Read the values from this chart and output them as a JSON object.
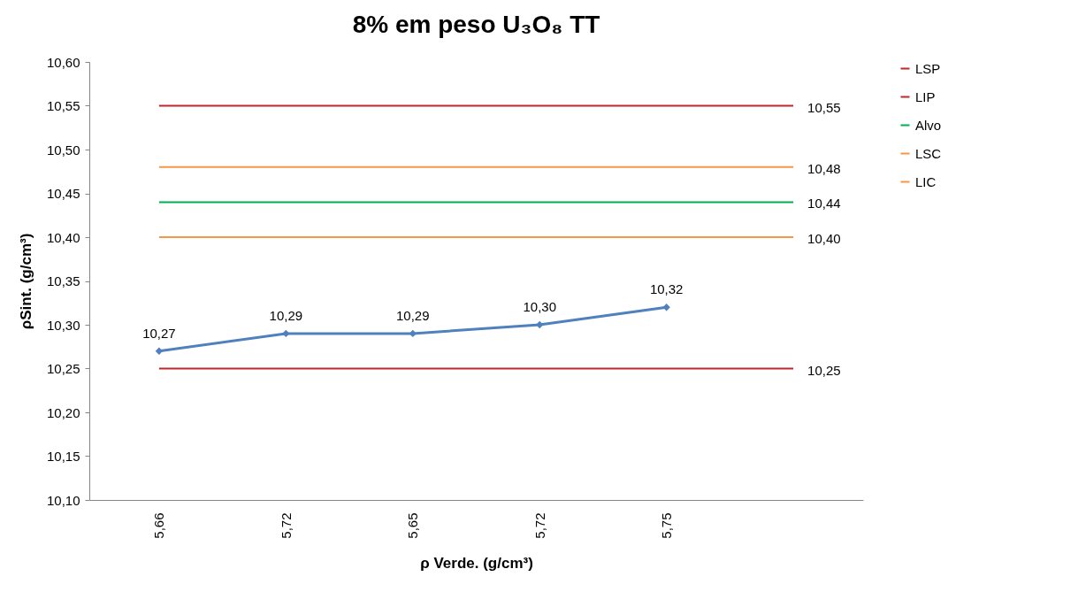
{
  "chart_data": {
    "type": "line",
    "title": "8% em peso U₃O₈ TT",
    "xlabel": "ρ Verde. (g/cm³)",
    "ylabel": "ρSint. (g/cm³)",
    "categories": [
      "5,66",
      "5,72",
      "5,65",
      "5,72",
      "5,75",
      null
    ],
    "ylim": [
      10.1,
      10.6
    ],
    "yticks": [
      {
        "value": 10.1,
        "label": "10,10"
      },
      {
        "value": 10.15,
        "label": "10,15"
      },
      {
        "value": 10.2,
        "label": "10,20"
      },
      {
        "value": 10.25,
        "label": "10,25"
      },
      {
        "value": 10.3,
        "label": "10,30"
      },
      {
        "value": 10.35,
        "label": "10,35"
      },
      {
        "value": 10.4,
        "label": "10,40"
      },
      {
        "value": 10.45,
        "label": "10,45"
      },
      {
        "value": 10.5,
        "label": "10,50"
      },
      {
        "value": 10.55,
        "label": "10,55"
      },
      {
        "value": 10.6,
        "label": "10,60"
      }
    ],
    "grid": false,
    "legend": "right",
    "line_style": "solid",
    "series": [
      {
        "name": "LSP",
        "color": "#c0272d",
        "marker": "none",
        "values": [
          10.55,
          10.55,
          10.55,
          10.55,
          10.55,
          10.55
        ],
        "value_labels": [
          null,
          null,
          null,
          null,
          null,
          "10,55"
        ]
      },
      {
        "name": "LIP",
        "color": "#c0272d",
        "marker": "none",
        "values": [
          10.25,
          10.25,
          10.25,
          10.25,
          10.25,
          10.25
        ],
        "value_labels": [
          null,
          null,
          null,
          null,
          null,
          "10,25"
        ]
      },
      {
        "name": "Alvo",
        "color": "#00b050",
        "marker": "none",
        "values": [
          10.44,
          10.44,
          10.44,
          10.44,
          10.44,
          10.44
        ],
        "value_labels": [
          null,
          null,
          null,
          null,
          null,
          "10,44"
        ]
      },
      {
        "name": "LSC",
        "color": "#f79646",
        "marker": "none",
        "values": [
          10.48,
          10.48,
          10.48,
          10.48,
          10.48,
          10.48
        ],
        "value_labels": [
          null,
          null,
          null,
          null,
          null,
          "10,48"
        ]
      },
      {
        "name": "LIC",
        "color": "#f79646",
        "marker": "none",
        "values": [
          10.4,
          10.4,
          10.4,
          10.4,
          10.4,
          10.4
        ],
        "value_labels": [
          null,
          null,
          null,
          null,
          null,
          "10,40"
        ]
      },
      {
        "color": "#4f81bd",
        "marker": "diamond",
        "values": [
          10.27,
          10.29,
          10.29,
          10.3,
          10.32,
          null
        ],
        "value_labels": [
          "10,27",
          "10,29",
          "10,29",
          "10,30",
          "10,32",
          null
        ]
      }
    ]
  }
}
